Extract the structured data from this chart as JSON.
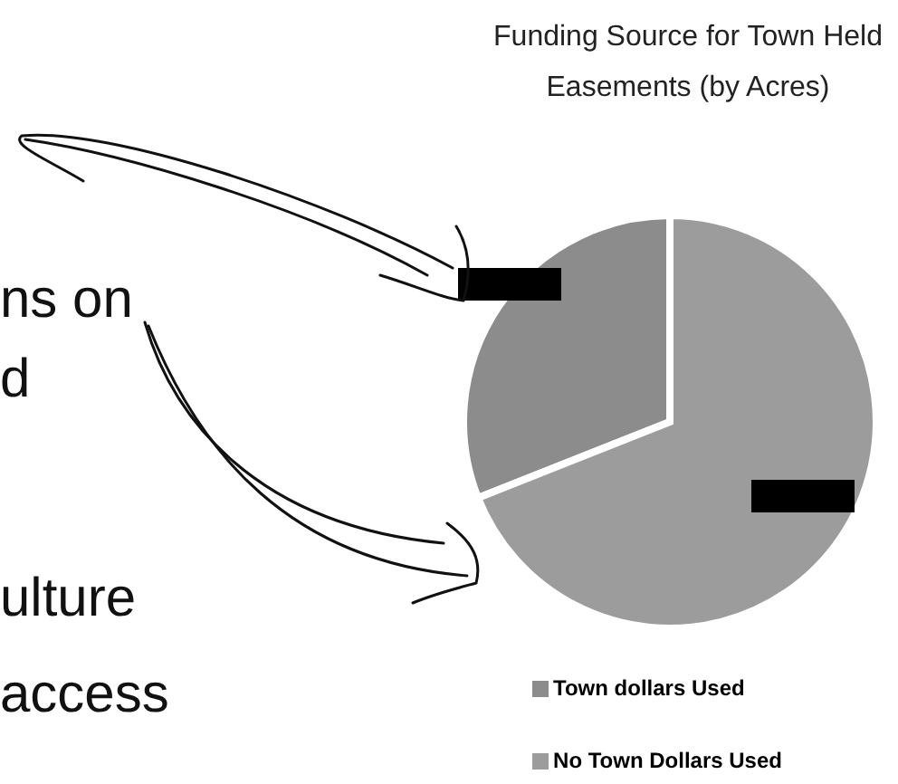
{
  "chart_data": {
    "type": "pie",
    "title": "Funding Source for Town Held Easements (by Acres)",
    "categories": [
      "Town dollars Used",
      "No Town Dollars Used"
    ],
    "values": [
      31,
      69
    ],
    "colors": [
      "#8c8c8c",
      "#9c9c9c"
    ],
    "legend": "bottom right",
    "annotations": [
      "ns on",
      "d",
      "ulture",
      "access"
    ]
  }
}
